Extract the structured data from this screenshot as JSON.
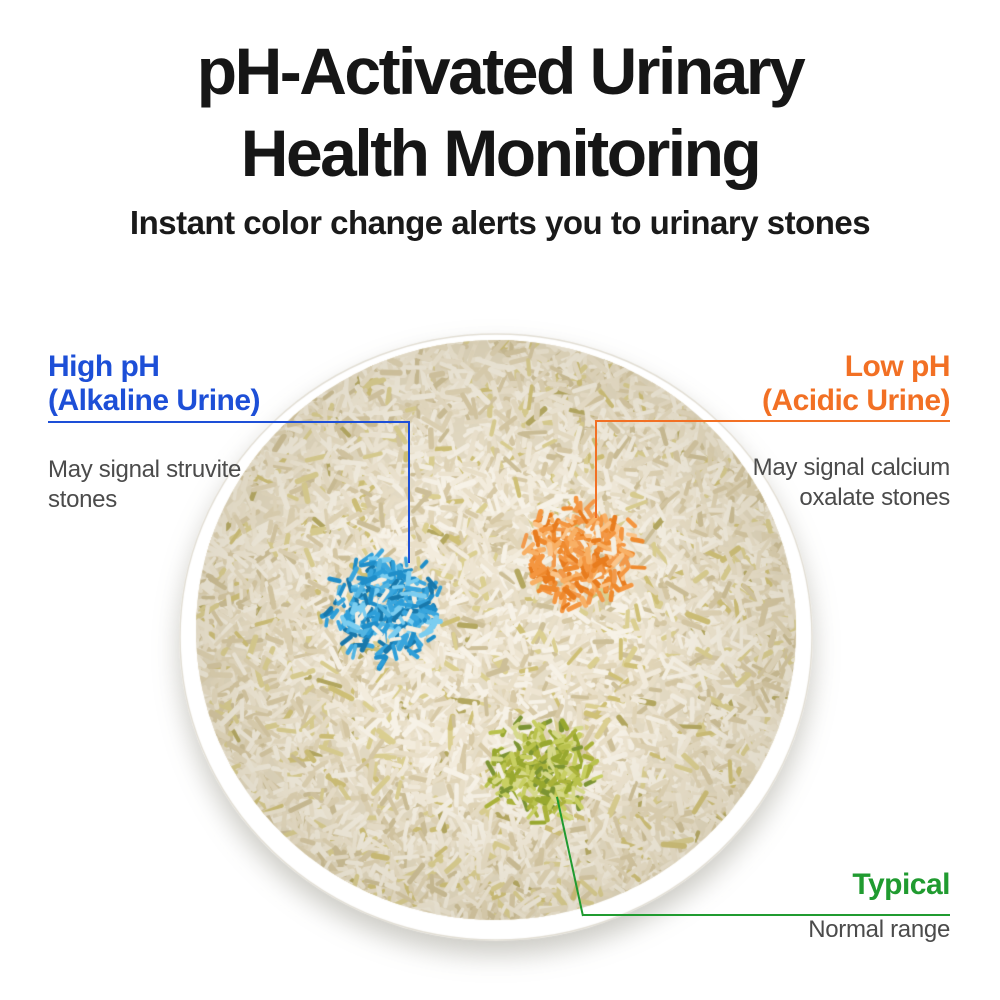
{
  "title": {
    "line1": "pH-Activated Urinary",
    "line2": "Health Monitoring"
  },
  "subtitle": "Instant color change alerts you to urinary stones",
  "callouts": {
    "high_ph": {
      "heading": "High pH",
      "subheading": "(Alkaline Urine)",
      "description": "May signal struvite stones",
      "accent_color": "#1d4fd7",
      "spot_color": "#2e9fd9"
    },
    "low_ph": {
      "heading": "Low pH",
      "subheading": "(Acidic Urine)",
      "description": "May signal calcium oxalate stones",
      "accent_color": "#f27024",
      "spot_color": "#f49640"
    },
    "typical": {
      "heading": "Typical",
      "description": "Normal range",
      "accent_color": "#209b30",
      "spot_color": "#b9c24d"
    }
  }
}
